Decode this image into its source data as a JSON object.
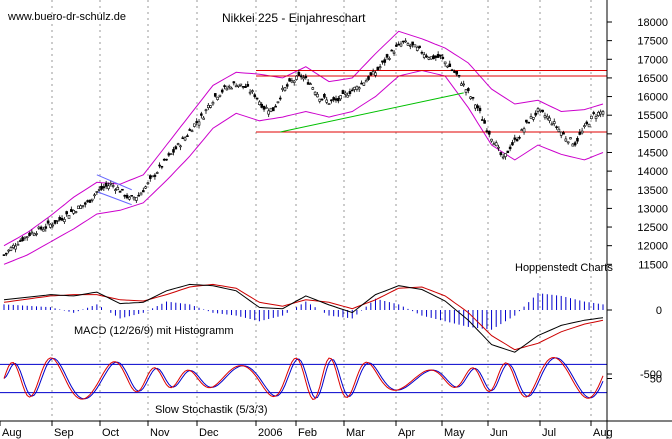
{
  "watermark": "www.buero-dr-schulz.de",
  "source_label": "Hoppenstedt Charts",
  "chart_data": [
    {
      "type": "candlestick",
      "title": "Nikkei 225 - Einjahreschart",
      "months": [
        "Aug",
        "Sep",
        "Oct",
        "Nov",
        "Dec",
        "2006",
        "Feb",
        "Mar",
        "Apr",
        "May",
        "Jun",
        "Jul",
        "Aug"
      ],
      "y_ticks": [
        11500,
        12000,
        12500,
        13000,
        13500,
        14000,
        14500,
        15000,
        15500,
        16000,
        16500,
        17000,
        17500,
        18000
      ],
      "ylim": [
        11500,
        18100
      ],
      "grid": "vertical dotted at month starts",
      "path": [
        [
          0,
          11750
        ],
        [
          6,
          12100
        ],
        [
          12,
          12350
        ],
        [
          18,
          12500
        ],
        [
          24,
          12700
        ],
        [
          30,
          12950
        ],
        [
          36,
          13150
        ],
        [
          40,
          13450
        ],
        [
          46,
          13650
        ],
        [
          50,
          13500
        ],
        [
          54,
          13250
        ],
        [
          58,
          13350
        ],
        [
          62,
          13650
        ],
        [
          66,
          14000
        ],
        [
          70,
          14300
        ],
        [
          74,
          14600
        ],
        [
          78,
          14900
        ],
        [
          82,
          15250
        ],
        [
          86,
          15500
        ],
        [
          88,
          15750
        ],
        [
          91,
          16000
        ],
        [
          95,
          16200
        ],
        [
          100,
          16350
        ],
        [
          104,
          16250
        ],
        [
          108,
          16050
        ],
        [
          112,
          15700
        ],
        [
          116,
          15650
        ],
        [
          120,
          16150
        ],
        [
          124,
          16400
        ],
        [
          128,
          16550
        ],
        [
          132,
          16350
        ],
        [
          136,
          16000
        ],
        [
          140,
          15850
        ],
        [
          144,
          15900
        ],
        [
          148,
          16100
        ],
        [
          152,
          16250
        ],
        [
          156,
          16450
        ],
        [
          160,
          16650
        ],
        [
          164,
          16950
        ],
        [
          168,
          17250
        ],
        [
          172,
          17450
        ],
        [
          176,
          17350
        ],
        [
          180,
          17200
        ],
        [
          184,
          17050
        ],
        [
          188,
          17050
        ],
        [
          192,
          16800
        ],
        [
          196,
          16500
        ],
        [
          200,
          16100
        ],
        [
          204,
          15700
        ],
        [
          208,
          15150
        ],
        [
          212,
          14700
        ],
        [
          215,
          14300
        ],
        [
          218,
          14650
        ],
        [
          222,
          14950
        ],
        [
          226,
          15350
        ],
        [
          230,
          15600
        ],
        [
          234,
          15450
        ],
        [
          238,
          15200
        ],
        [
          242,
          14900
        ],
        [
          246,
          14750
        ],
        [
          250,
          15150
        ],
        [
          254,
          15500
        ],
        [
          258,
          15600
        ]
      ],
      "upper_band": [
        [
          0,
          12000
        ],
        [
          10,
          12350
        ],
        [
          20,
          12800
        ],
        [
          30,
          13300
        ],
        [
          40,
          13700
        ],
        [
          50,
          13650
        ],
        [
          60,
          13900
        ],
        [
          70,
          14700
        ],
        [
          80,
          15500
        ],
        [
          90,
          16300
        ],
        [
          100,
          16650
        ],
        [
          110,
          16600
        ],
        [
          120,
          16500
        ],
        [
          130,
          16800
        ],
        [
          140,
          16400
        ],
        [
          150,
          16500
        ],
        [
          160,
          17150
        ],
        [
          170,
          17750
        ],
        [
          180,
          17550
        ],
        [
          190,
          17300
        ],
        [
          200,
          16900
        ],
        [
          210,
          16200
        ],
        [
          220,
          15800
        ],
        [
          230,
          15900
        ],
        [
          240,
          15600
        ],
        [
          250,
          15650
        ],
        [
          258,
          15800
        ]
      ],
      "lower_band": [
        [
          0,
          11500
        ],
        [
          10,
          11750
        ],
        [
          20,
          12100
        ],
        [
          30,
          12450
        ],
        [
          40,
          12850
        ],
        [
          50,
          12950
        ],
        [
          60,
          13150
        ],
        [
          70,
          13750
        ],
        [
          80,
          14400
        ],
        [
          90,
          15150
        ],
        [
          100,
          15550
        ],
        [
          110,
          15350
        ],
        [
          120,
          15450
        ],
        [
          130,
          15600
        ],
        [
          140,
          15450
        ],
        [
          150,
          15600
        ],
        [
          160,
          16000
        ],
        [
          170,
          16550
        ],
        [
          180,
          16700
        ],
        [
          190,
          16550
        ],
        [
          200,
          15700
        ],
        [
          210,
          14700
        ],
        [
          220,
          14300
        ],
        [
          230,
          14700
        ],
        [
          240,
          14450
        ],
        [
          250,
          14300
        ],
        [
          258,
          14500
        ]
      ],
      "resistance_levels": [
        16700,
        16550,
        15050
      ],
      "support_trendline": [
        [
          119,
          15050
        ],
        [
          198,
          16100
        ]
      ],
      "channel_lines": [
        [
          [
            40,
            13900
          ],
          [
            55,
            13500
          ]
        ],
        [
          [
            40,
            13450
          ],
          [
            55,
            13100
          ]
        ]
      ]
    },
    {
      "type": "line",
      "title": "MACD (12/26/9) mit Histogramm",
      "y_ticks": [
        0,
        -500
      ],
      "ylim": [
        -700,
        450
      ],
      "macd_series": [
        [
          0,
          80
        ],
        [
          20,
          120
        ],
        [
          30,
          110
        ],
        [
          40,
          140
        ],
        [
          50,
          50
        ],
        [
          60,
          60
        ],
        [
          70,
          150
        ],
        [
          80,
          200
        ],
        [
          90,
          190
        ],
        [
          100,
          150
        ],
        [
          110,
          20
        ],
        [
          120,
          10
        ],
        [
          130,
          110
        ],
        [
          140,
          40
        ],
        [
          150,
          -20
        ],
        [
          160,
          120
        ],
        [
          170,
          190
        ],
        [
          180,
          160
        ],
        [
          190,
          70
        ],
        [
          200,
          -80
        ],
        [
          210,
          -270
        ],
        [
          220,
          -330
        ],
        [
          230,
          -200
        ],
        [
          240,
          -120
        ],
        [
          250,
          -80
        ],
        [
          258,
          -60
        ]
      ],
      "signal_series": [
        [
          0,
          60
        ],
        [
          20,
          110
        ],
        [
          30,
          120
        ],
        [
          40,
          120
        ],
        [
          50,
          80
        ],
        [
          60,
          70
        ],
        [
          70,
          120
        ],
        [
          80,
          180
        ],
        [
          90,
          200
        ],
        [
          100,
          170
        ],
        [
          110,
          60
        ],
        [
          120,
          30
        ],
        [
          130,
          80
        ],
        [
          140,
          60
        ],
        [
          150,
          10
        ],
        [
          160,
          80
        ],
        [
          170,
          170
        ],
        [
          180,
          180
        ],
        [
          190,
          110
        ],
        [
          200,
          -20
        ],
        [
          210,
          -200
        ],
        [
          220,
          -310
        ],
        [
          230,
          -260
        ],
        [
          240,
          -170
        ],
        [
          250,
          -110
        ],
        [
          258,
          -80
        ]
      ]
    },
    {
      "type": "line",
      "title": "Slow Stochastik (5/3/3)",
      "y_ticks": [
        50
      ],
      "ylim": [
        0,
        100
      ],
      "reference_levels": [
        80,
        20
      ]
    }
  ]
}
